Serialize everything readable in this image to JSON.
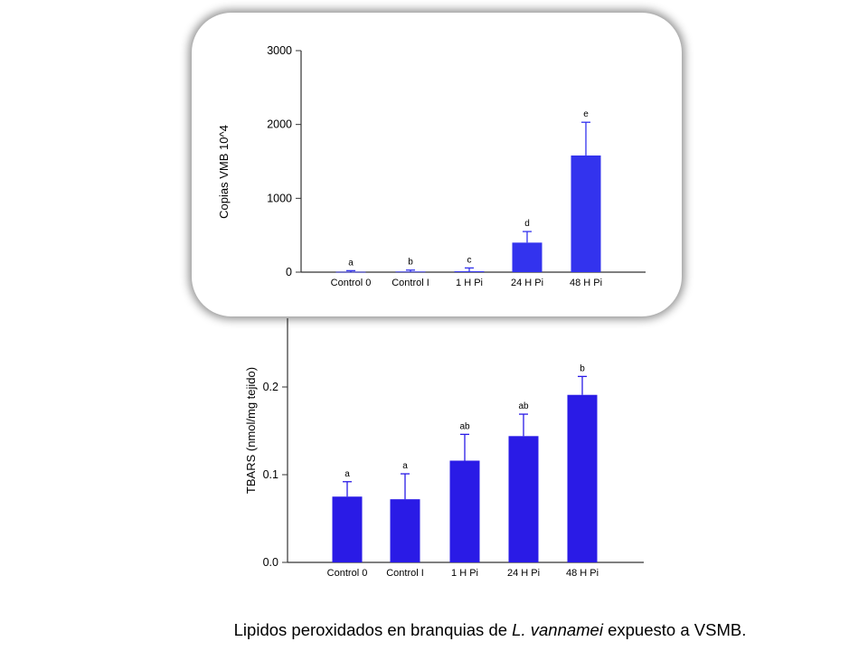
{
  "caption": {
    "prefix": "Lipidos peroxidados en branquias de ",
    "species": "L. vannamei",
    "suffix": " expuesto a VSMB."
  },
  "colors": {
    "bar": "#2a1be6",
    "bar_top": "#3333ee",
    "axis": "#333333"
  },
  "chart_data": [
    {
      "type": "bar",
      "categories": [
        "Control 0",
        "Control I",
        "1 H Pi",
        "24 H Pi",
        "48 H Pi"
      ],
      "values": [
        5,
        8,
        12,
        400,
        1580
      ],
      "errors": [
        15,
        20,
        45,
        150,
        450
      ],
      "labels": [
        "a",
        "b",
        "c",
        "d",
        "e"
      ],
      "ylabel": "Copias VMB 10^4",
      "yticks": [
        0,
        1000,
        2000,
        3000
      ],
      "ylim": [
        0,
        3000
      ],
      "grid": false
    },
    {
      "type": "bar",
      "categories": [
        "Control 0",
        "Control I",
        "1 H Pi",
        "24 H Pi",
        "48 H Pi"
      ],
      "values": [
        0.075,
        0.072,
        0.116,
        0.144,
        0.191
      ],
      "errors": [
        0.017,
        0.029,
        0.03,
        0.025,
        0.021
      ],
      "labels": [
        "a",
        "a",
        "ab",
        "ab",
        "b"
      ],
      "ylabel": "TBARS (nmol/mg tejido)",
      "yticks": [
        "0.0",
        "0.1",
        "0.2"
      ],
      "ylim": [
        0,
        0.27
      ],
      "grid": false
    }
  ]
}
